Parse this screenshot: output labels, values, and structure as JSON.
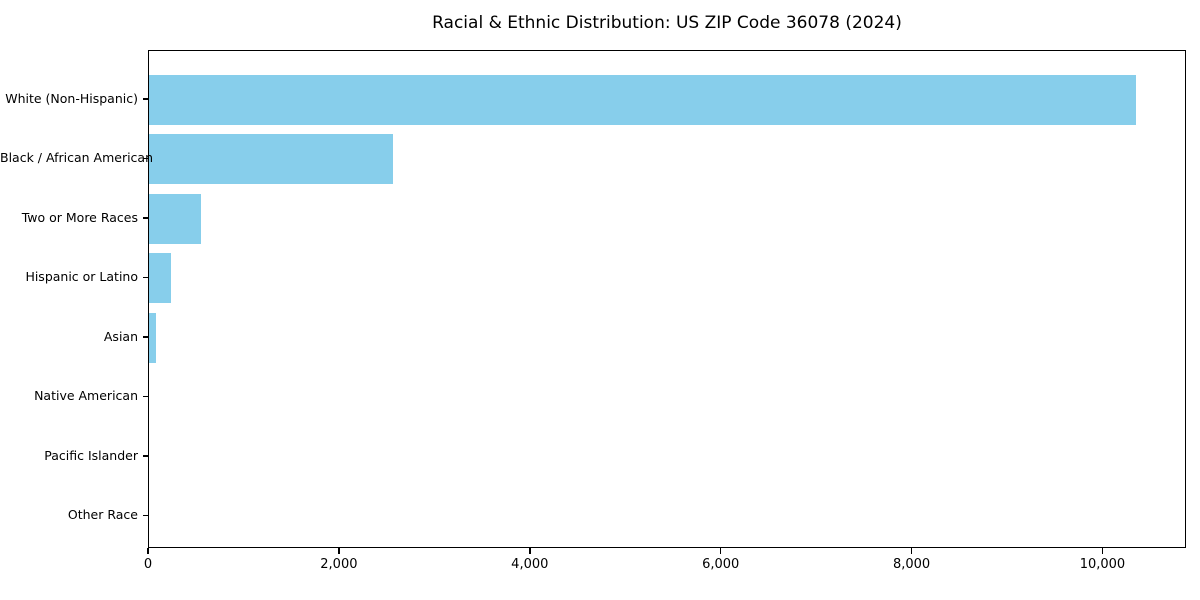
{
  "chart_data": {
    "type": "bar",
    "orientation": "horizontal",
    "title": "Racial & Ethnic Distribution: US ZIP Code 36078 (2024)",
    "categories": [
      "White (Non-Hispanic)",
      "Black / African American",
      "Two or More Races",
      "Hispanic or Latino",
      "Asian",
      "Native American",
      "Pacific Islander",
      "Other Race"
    ],
    "values": [
      10360,
      2558,
      546,
      231,
      73,
      0,
      0,
      0
    ],
    "xlabel": "",
    "ylabel": "",
    "xlim": [
      0,
      10875
    ],
    "x_ticks": [
      0,
      2000,
      4000,
      6000,
      8000,
      10000
    ],
    "x_tick_labels": [
      "0",
      "2,000",
      "4,000",
      "6,000",
      "8,000",
      "10,000"
    ],
    "bar_color": "#87CEEB",
    "axis_color": "#000000",
    "background_color": "#ffffff",
    "grid": false,
    "legend": null
  }
}
